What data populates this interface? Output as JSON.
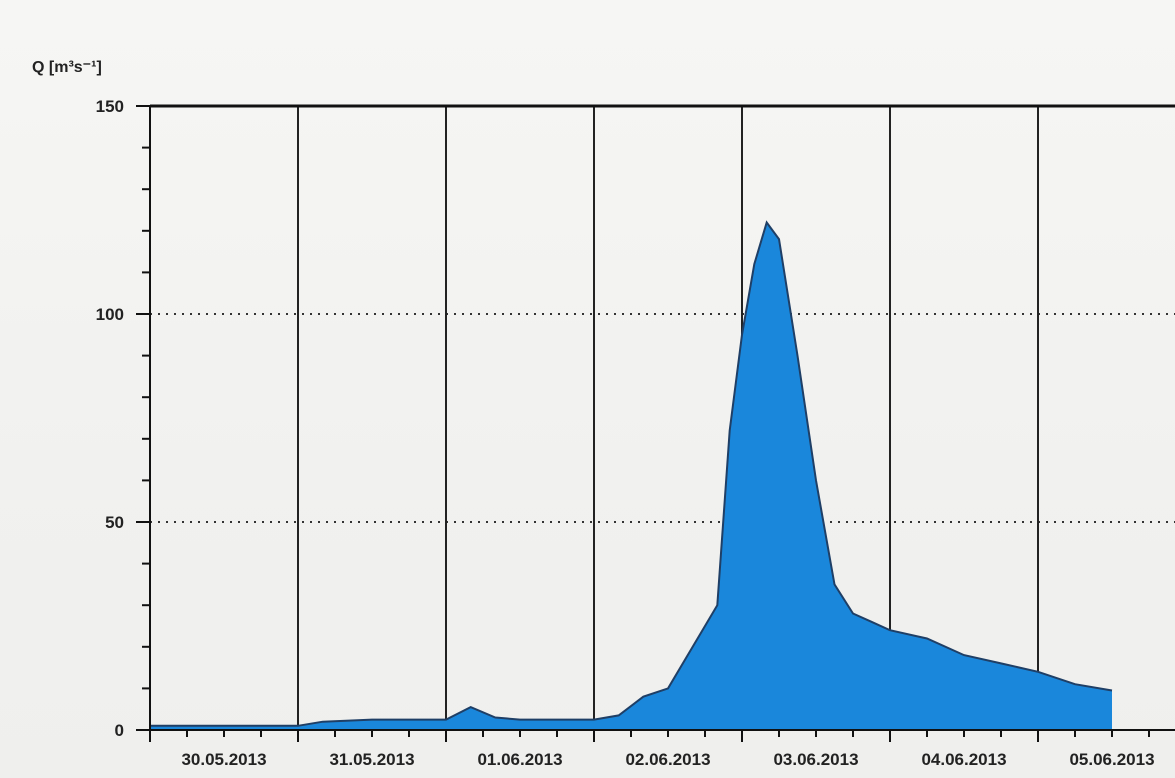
{
  "chart_data": {
    "type": "area",
    "title": "",
    "ylabel": "Q [m³s⁻¹]",
    "xlabel": "",
    "ylim": [
      0,
      150
    ],
    "yticks": [
      0,
      50,
      100,
      150
    ],
    "ytick_labels": [
      "0",
      "50",
      "100",
      "150"
    ],
    "xlim": [
      "2013-05-30T00:00",
      "2013-06-06T00:00"
    ],
    "x_tick_labels": [
      "30.05.2013",
      "31.05.2013",
      "01.06.2013",
      "02.06.2013",
      "03.06.2013",
      "04.06.2013",
      "05.06.2013"
    ],
    "grid": {
      "horizontal": "dotted at 50 and 100",
      "vertical": "solid at each day"
    },
    "fill_color": "#1a87db",
    "line_color": "#1f3f66",
    "series": [
      {
        "x": [
          "2013-05-30T00:00",
          "2013-05-30T12:00",
          "2013-05-31T00:00",
          "2013-05-31T04:00",
          "2013-05-31T12:00",
          "2013-05-31T20:00",
          "2013-06-01T00:00",
          "2013-06-01T04:00",
          "2013-06-01T08:00",
          "2013-06-01T12:00",
          "2013-06-01T18:00",
          "2013-06-02T00:00",
          "2013-06-02T04:00",
          "2013-06-02T08:00",
          "2013-06-02T12:00",
          "2013-06-02T16:00",
          "2013-06-02T20:00",
          "2013-06-02T22:00",
          "2013-06-03T00:00",
          "2013-06-03T02:00",
          "2013-06-03T04:00",
          "2013-06-03T06:00",
          "2013-06-03T09:00",
          "2013-06-03T12:00",
          "2013-06-03T15:00",
          "2013-06-03T18:00",
          "2013-06-03T21:00",
          "2013-06-04T00:00",
          "2013-06-04T06:00",
          "2013-06-04T12:00",
          "2013-06-04T18:00",
          "2013-06-05T00:00",
          "2013-06-05T06:00",
          "2013-06-05T12:00"
        ],
        "values": [
          1,
          1,
          1,
          2,
          2.5,
          2.5,
          2.5,
          5.5,
          3,
          2.5,
          2.5,
          2.5,
          3.5,
          8,
          10,
          20,
          30,
          72,
          95,
          112,
          122,
          118,
          90,
          60,
          35,
          28,
          26,
          24,
          22,
          18,
          16,
          14,
          11,
          9.5
        ]
      }
    ]
  }
}
